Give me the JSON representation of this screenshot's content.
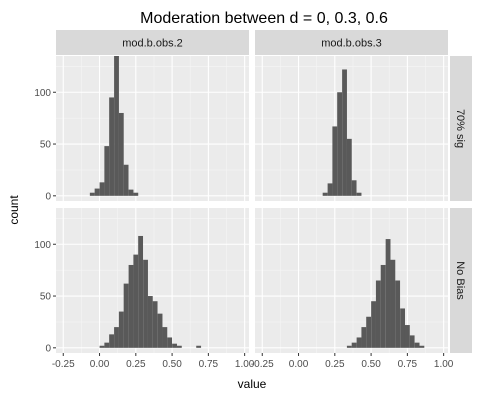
{
  "chart_data": {
    "type": "bar",
    "subtype": "faceted-histogram",
    "title": "Moderation between d = 0, 0.3, 0.6",
    "xlabel": "value",
    "ylabel": "count",
    "xlim": [
      -0.3,
      1.03
    ],
    "ylim": [
      -5,
      135
    ],
    "x_ticks": [
      -0.25,
      0.0,
      0.25,
      0.5,
      0.75,
      1.0
    ],
    "x_tick_labels": [
      "-0.25",
      "0.00",
      "0.25",
      "0.50",
      "0.75",
      "1.00"
    ],
    "y_ticks": [
      0,
      50,
      100
    ],
    "y_tick_labels": [
      "0",
      "50",
      "100"
    ],
    "bin_width": 0.0333,
    "bar_color": "#595959",
    "panel_background": "#ebebeb",
    "strip_background": "#d9d9d9",
    "grid": true,
    "col_facets": [
      "mod.b.obs.2",
      "mod.b.obs.3"
    ],
    "row_facets": [
      "70% sig",
      "No Bias"
    ],
    "panels": [
      {
        "row": 0,
        "col": 0,
        "bins": [
          {
            "x": -0.05,
            "count": 3
          },
          {
            "x": -0.017,
            "count": 7
          },
          {
            "x": 0.017,
            "count": 13
          },
          {
            "x": 0.05,
            "count": 48
          },
          {
            "x": 0.083,
            "count": 95
          },
          {
            "x": 0.117,
            "count": 135
          },
          {
            "x": 0.15,
            "count": 80
          },
          {
            "x": 0.183,
            "count": 30
          },
          {
            "x": 0.217,
            "count": 6
          },
          {
            "x": 0.25,
            "count": 3
          }
        ]
      },
      {
        "row": 0,
        "col": 1,
        "bins": [
          {
            "x": 0.183,
            "count": 3
          },
          {
            "x": 0.217,
            "count": 12
          },
          {
            "x": 0.25,
            "count": 67
          },
          {
            "x": 0.283,
            "count": 100
          },
          {
            "x": 0.317,
            "count": 122
          },
          {
            "x": 0.35,
            "count": 55
          },
          {
            "x": 0.383,
            "count": 15
          },
          {
            "x": 0.417,
            "count": 3
          }
        ]
      },
      {
        "row": 1,
        "col": 0,
        "bins": [
          {
            "x": 0.017,
            "count": 2
          },
          {
            "x": 0.05,
            "count": 5
          },
          {
            "x": 0.083,
            "count": 13
          },
          {
            "x": 0.117,
            "count": 20
          },
          {
            "x": 0.15,
            "count": 35
          },
          {
            "x": 0.183,
            "count": 62
          },
          {
            "x": 0.217,
            "count": 80
          },
          {
            "x": 0.25,
            "count": 90
          },
          {
            "x": 0.283,
            "count": 108
          },
          {
            "x": 0.317,
            "count": 85
          },
          {
            "x": 0.35,
            "count": 50
          },
          {
            "x": 0.383,
            "count": 45
          },
          {
            "x": 0.417,
            "count": 33
          },
          {
            "x": 0.45,
            "count": 20
          },
          {
            "x": 0.483,
            "count": 10
          },
          {
            "x": 0.517,
            "count": 4
          },
          {
            "x": 0.55,
            "count": 2
          },
          {
            "x": 0.683,
            "count": 2
          }
        ]
      },
      {
        "row": 1,
        "col": 1,
        "bins": [
          {
            "x": 0.35,
            "count": 2
          },
          {
            "x": 0.383,
            "count": 5
          },
          {
            "x": 0.417,
            "count": 10
          },
          {
            "x": 0.45,
            "count": 20
          },
          {
            "x": 0.483,
            "count": 30
          },
          {
            "x": 0.517,
            "count": 45
          },
          {
            "x": 0.55,
            "count": 65
          },
          {
            "x": 0.583,
            "count": 80
          },
          {
            "x": 0.617,
            "count": 105
          },
          {
            "x": 0.65,
            "count": 85
          },
          {
            "x": 0.683,
            "count": 65
          },
          {
            "x": 0.717,
            "count": 38
          },
          {
            "x": 0.75,
            "count": 22
          },
          {
            "x": 0.783,
            "count": 12
          },
          {
            "x": 0.817,
            "count": 5
          },
          {
            "x": 0.85,
            "count": 2
          }
        ]
      }
    ]
  }
}
